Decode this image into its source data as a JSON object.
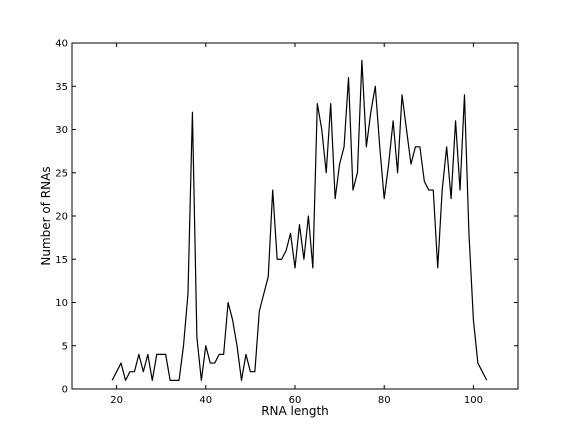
{
  "chart_data": {
    "type": "line",
    "title": "",
    "xlabel": "RNA length",
    "ylabel": "Number of RNAs",
    "xlim": [
      10,
      110
    ],
    "ylim": [
      0,
      40
    ],
    "xticks": [
      20,
      40,
      60,
      80,
      100
    ],
    "yticks": [
      0,
      5,
      10,
      15,
      20,
      25,
      30,
      35,
      40
    ],
    "grid": false,
    "line_color": "#000000",
    "series": [
      {
        "x": [
          19,
          20,
          21,
          22,
          23,
          24,
          25,
          26,
          27,
          28,
          29,
          30,
          31,
          32,
          33,
          34,
          35,
          36,
          37,
          38,
          39,
          40,
          41,
          42,
          43,
          44,
          45,
          46,
          47,
          48,
          49,
          50,
          51,
          52,
          53,
          54,
          55,
          56,
          57,
          58,
          59,
          60,
          61,
          62,
          63,
          64,
          65,
          66,
          67,
          68,
          69,
          70,
          71,
          72,
          73,
          74,
          75,
          76,
          77,
          78,
          79,
          80,
          81,
          82,
          83,
          84,
          85,
          86,
          87,
          88,
          89,
          90,
          91,
          92,
          93,
          94,
          95,
          96,
          97,
          98,
          99,
          100,
          101,
          102,
          103
        ],
        "values": [
          1,
          2,
          3,
          1,
          2,
          2,
          4,
          2,
          4,
          1,
          4,
          4,
          4,
          1,
          1,
          1,
          5,
          11,
          32,
          6,
          1,
          5,
          3,
          3,
          4,
          4,
          10,
          8,
          5,
          1,
          4,
          2,
          2,
          9,
          11,
          13,
          23,
          15,
          15,
          16,
          18,
          14,
          19,
          15,
          20,
          14,
          33,
          30,
          25,
          33,
          22,
          26,
          28,
          36,
          23,
          25,
          38,
          28,
          32,
          35,
          28,
          22,
          26,
          31,
          25,
          34,
          30,
          26,
          28,
          28,
          24,
          23,
          23,
          14,
          23,
          28,
          22,
          31,
          23,
          34,
          18,
          8,
          3,
          2,
          1
        ]
      }
    ]
  }
}
